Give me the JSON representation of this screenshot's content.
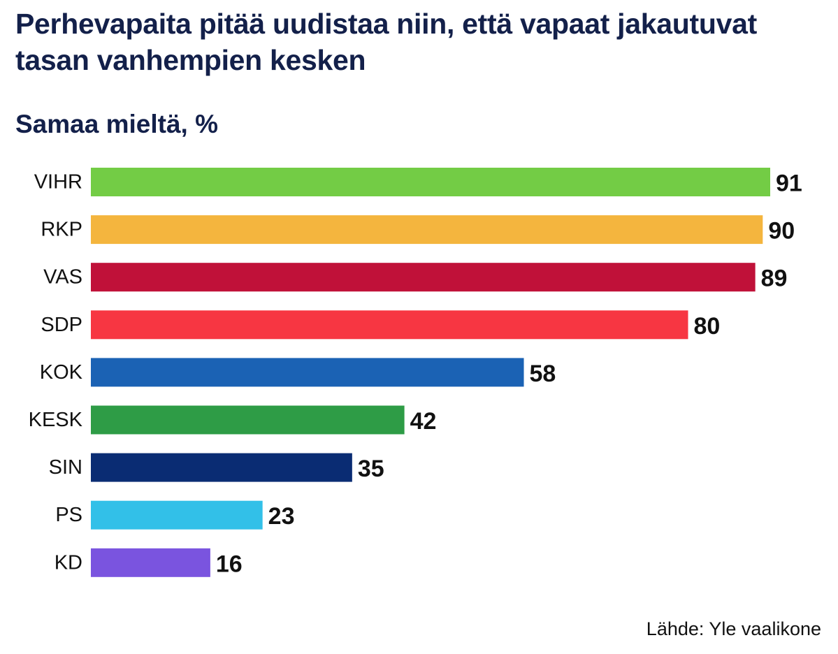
{
  "title": "Perhevapaita pitää uudistaa niin, että vapaat jakautuvat tasan vanhempien kesken",
  "subtitle": "Samaa mieltä, %",
  "source": "Lähde: Yle vaalikone",
  "chart_data": {
    "type": "bar",
    "orientation": "horizontal",
    "title": "Perhevapaita pitää uudistaa niin, että vapaat jakautuvat tasan vanhempien kesken",
    "subtitle": "Samaa mieltä, %",
    "categories": [
      "VIHR",
      "RKP",
      "VAS",
      "SDP",
      "KOK",
      "KESK",
      "SIN",
      "PS",
      "KD"
    ],
    "values": [
      91,
      90,
      89,
      80,
      58,
      42,
      35,
      23,
      16
    ],
    "colors": [
      "#73cc45",
      "#f4b53e",
      "#c01139",
      "#f73642",
      "#1b62b4",
      "#2e9c46",
      "#0a2c73",
      "#32c0e8",
      "#7a54df"
    ],
    "xlim": [
      0,
      91
    ],
    "grid": false,
    "legend": "none",
    "data_labels": true
  }
}
